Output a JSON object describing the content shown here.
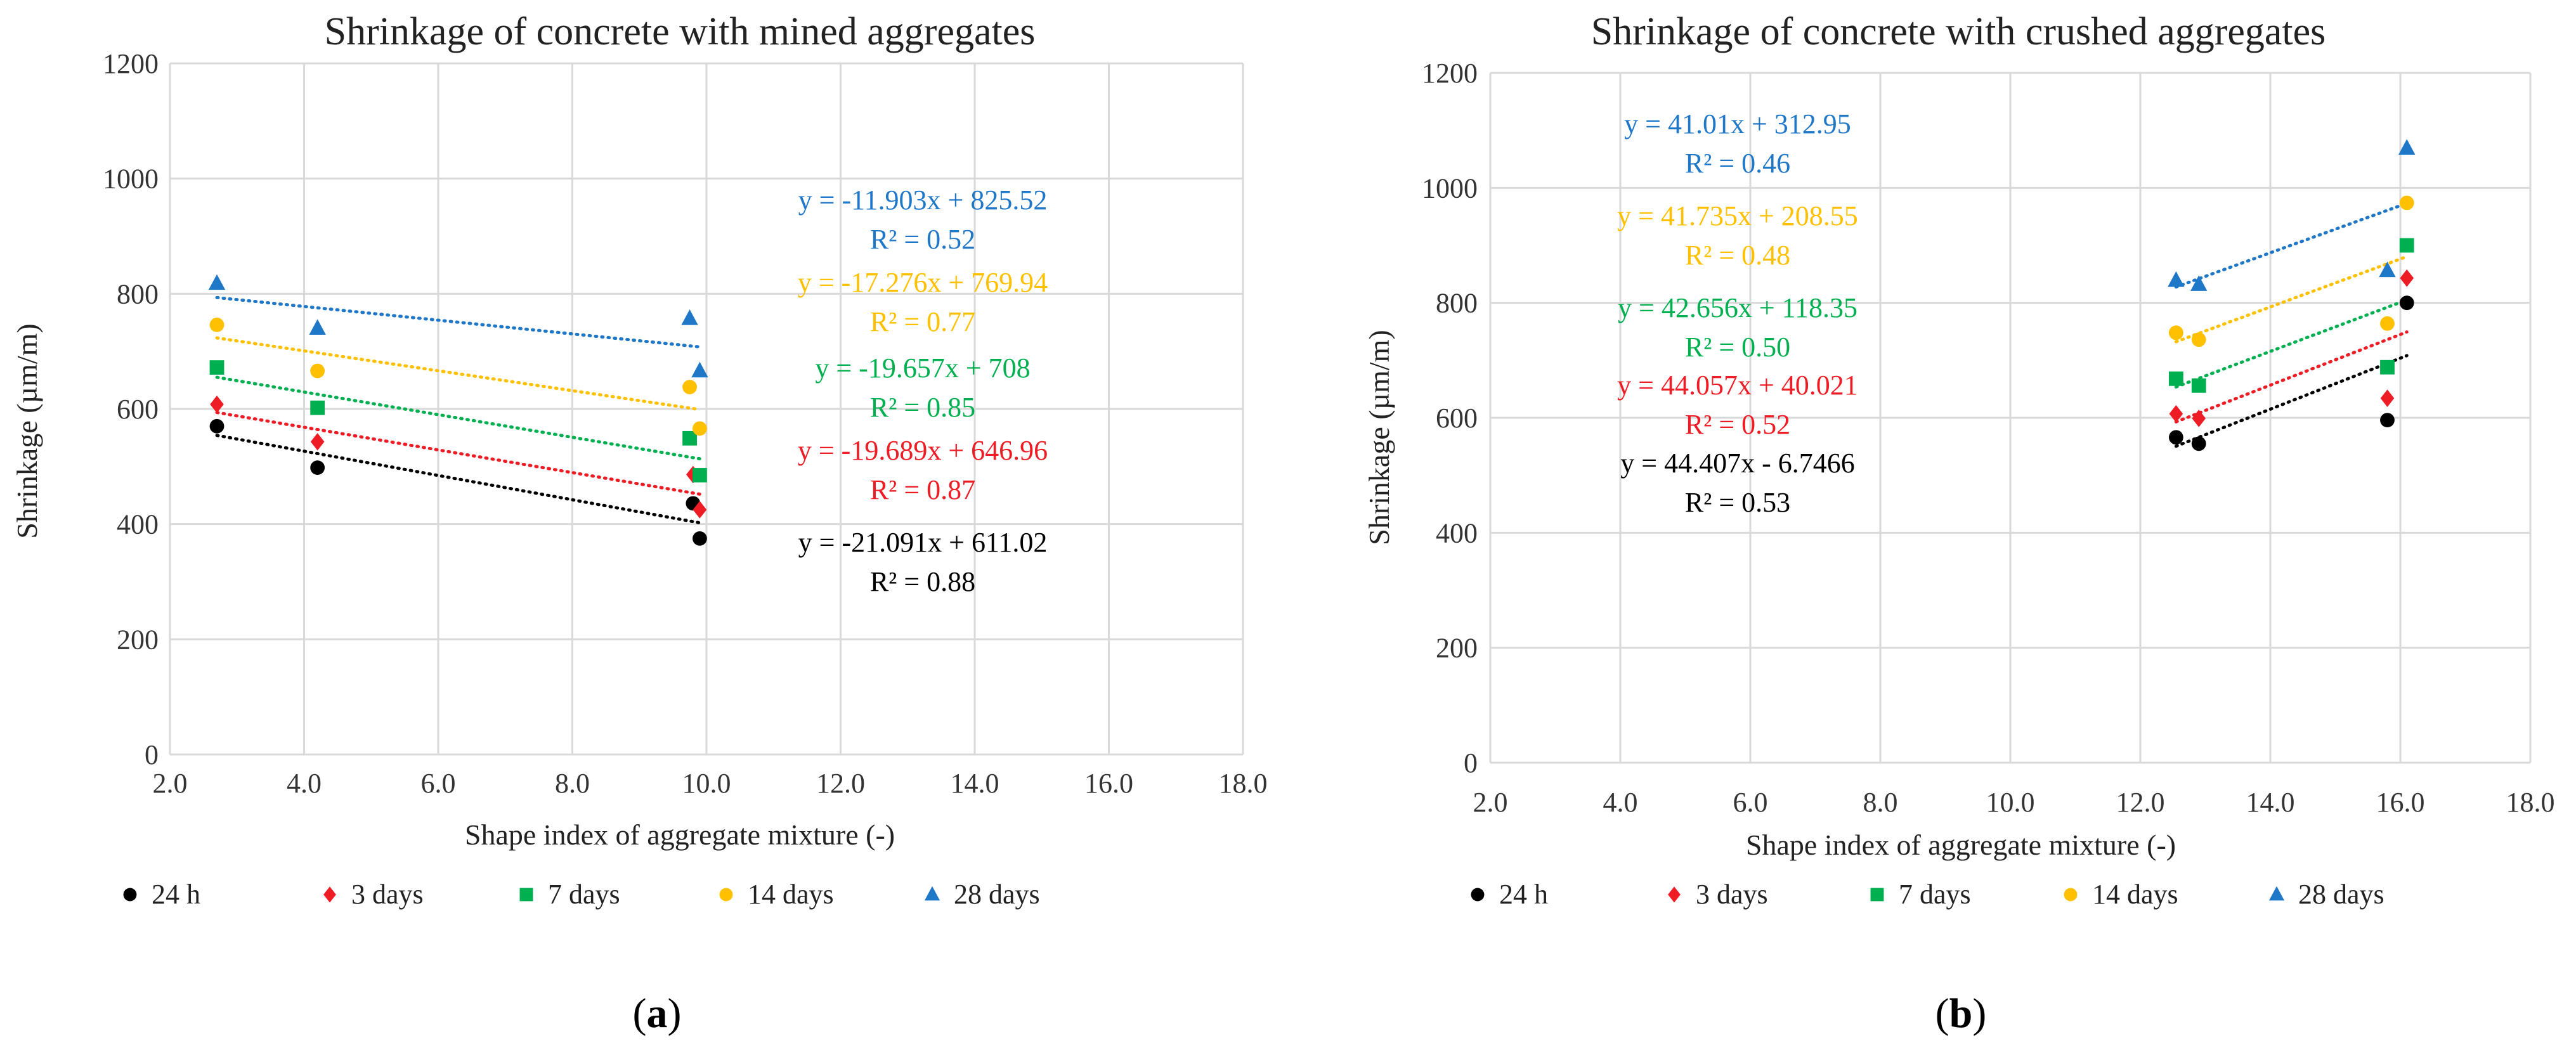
{
  "series_colors": {
    "24 h": "#000000",
    "3 days": "#ee1c25",
    "7 days": "#00b050",
    "14 days": "#ffc000",
    "28 days": "#1f77c8"
  },
  "legend": [
    {
      "name": "24 h",
      "marker": "circle"
    },
    {
      "name": "3 days",
      "marker": "diamond"
    },
    {
      "name": "7 days",
      "marker": "square"
    },
    {
      "name": "14 days",
      "marker": "circle"
    },
    {
      "name": "28 days",
      "marker": "triangle"
    }
  ],
  "chart_data": [
    {
      "type": "scatter",
      "title": "Shrinkage of concrete with mined aggregates",
      "xlabel": "Shape index of aggregate mixture (-)",
      "ylabel": "Shrinkage (µm/m)",
      "xlim": [
        2.0,
        18.0
      ],
      "ylim": [
        0,
        1200
      ],
      "xticks": [
        "2.0",
        "4.0",
        "6.0",
        "8.0",
        "10.0",
        "12.0",
        "14.0",
        "16.0",
        "18.0"
      ],
      "yticks": [
        "0",
        "200",
        "400",
        "600",
        "800",
        "1000",
        "1200"
      ],
      "panel_label": "a",
      "grid": true,
      "series": [
        {
          "name": "24 h",
          "x": [
            2.7,
            4.2,
            9.8,
            9.9
          ],
          "y": [
            570,
            498,
            436,
            375
          ],
          "trend": {
            "slope": -21.091,
            "intercept": 611.02
          },
          "equation": "y = -21.091x + 611.02",
          "r2": "R² = 0.88"
        },
        {
          "name": "3 days",
          "x": [
            2.7,
            4.2,
            9.8,
            9.9
          ],
          "y": [
            608,
            543,
            486,
            425
          ],
          "trend": {
            "slope": -19.689,
            "intercept": 646.96
          },
          "equation": "y = -19.689x + 646.96",
          "r2": "R² = 0.87"
        },
        {
          "name": "7 days",
          "x": [
            2.7,
            4.2,
            9.75,
            9.9
          ],
          "y": [
            672,
            602,
            549,
            485
          ],
          "trend": {
            "slope": -19.657,
            "intercept": 708
          },
          "equation": "y = -19.657x + 708",
          "r2": "R² = 0.85"
        },
        {
          "name": "14 days",
          "x": [
            2.7,
            4.2,
            9.75,
            9.9
          ],
          "y": [
            746,
            666,
            638,
            566
          ],
          "trend": {
            "slope": -17.276,
            "intercept": 769.94
          },
          "equation": "y = -17.276x + 769.94",
          "r2": "R² = 0.77"
        },
        {
          "name": "28 days",
          "x": [
            2.7,
            4.2,
            9.75,
            9.9
          ],
          "y": [
            818,
            740,
            757,
            666
          ],
          "trend": {
            "slope": -11.903,
            "intercept": 825.52
          },
          "equation": "y = -11.903x + 825.52",
          "r2": "R² = 0.52"
        }
      ]
    },
    {
      "type": "scatter",
      "title": "Shrinkage of concrete with crushed aggregates",
      "xlabel": "Shape index of aggregate mixture (-)",
      "ylabel": "Shrinkage (µm/m)",
      "xlim": [
        2.0,
        18.0
      ],
      "ylim": [
        0,
        1200
      ],
      "xticks": [
        "2.0",
        "4.0",
        "6.0",
        "8.0",
        "10.0",
        "12.0",
        "14.0",
        "16.0",
        "18.0"
      ],
      "yticks": [
        "0",
        "200",
        "400",
        "600",
        "800",
        "1000",
        "1200"
      ],
      "panel_label": "b",
      "grid": true,
      "series": [
        {
          "name": "24 h",
          "x": [
            12.55,
            12.9,
            15.8,
            16.1
          ],
          "y": [
            566,
            555,
            596,
            800
          ],
          "trend": {
            "slope": 44.407,
            "intercept": -6.7466
          },
          "equation": "y = 44.407x - 6.7466",
          "r2": "R² = 0.53"
        },
        {
          "name": "3 days",
          "x": [
            12.55,
            12.9,
            15.8,
            16.1
          ],
          "y": [
            607,
            599,
            634,
            843
          ],
          "trend": {
            "slope": 44.057,
            "intercept": 40.021
          },
          "equation": "y = 44.057x + 40.021",
          "r2": "R² = 0.52"
        },
        {
          "name": "7 days",
          "x": [
            12.55,
            12.9,
            15.8,
            16.1
          ],
          "y": [
            668,
            656,
            688,
            900
          ],
          "trend": {
            "slope": 42.656,
            "intercept": 118.35
          },
          "equation": "y = 42.656x + 118.35",
          "r2": "R² = 0.50"
        },
        {
          "name": "14 days",
          "x": [
            12.55,
            12.9,
            15.8,
            16.1
          ],
          "y": [
            748,
            736,
            764,
            974
          ],
          "trend": {
            "slope": 41.735,
            "intercept": 208.55
          },
          "equation": "y = 41.735x + 208.55",
          "r2": "R² = 0.48"
        },
        {
          "name": "28 days",
          "x": [
            12.55,
            12.9,
            15.8,
            16.1
          ],
          "y": [
            839,
            832,
            856,
            1069
          ],
          "trend": {
            "slope": 41.01,
            "intercept": 312.95
          },
          "equation": "y = 41.01x + 312.95",
          "r2": "R² = 0.46"
        }
      ]
    }
  ]
}
